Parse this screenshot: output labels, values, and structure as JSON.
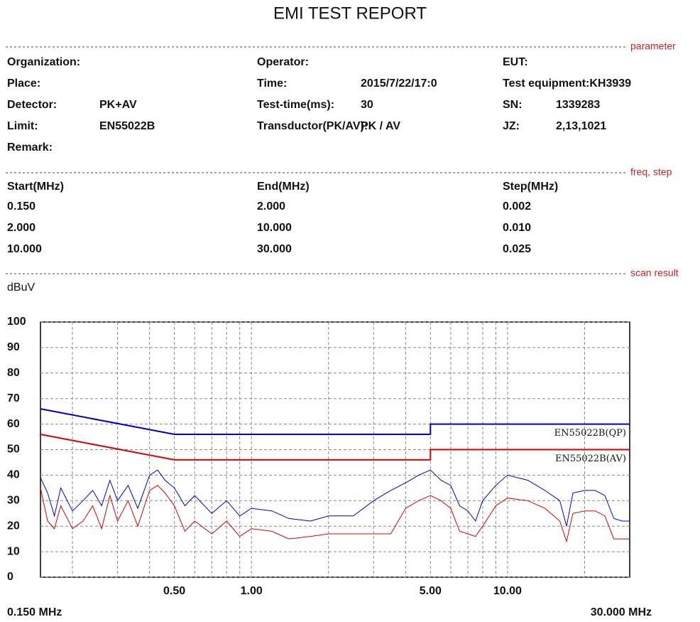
{
  "header": {
    "title": "EMI TEST REPORT"
  },
  "sections": {
    "parameter": "parameter",
    "freq_step": "freq, step",
    "scan_result": "scan result"
  },
  "parameters": [
    [
      {
        "label": "Organization:"
      },
      {
        "label": "Operator:"
      },
      {
        "label": "EUT:"
      }
    ],
    [
      {
        "label": "Place:"
      },
      {
        "label": "Time:",
        "value": "2015/7/22/17:0"
      },
      {
        "label": "Test equipment:KH3939"
      }
    ],
    [
      {
        "label": "Detector:",
        "value": "PK+AV"
      },
      {
        "label": "Test-time(ms):",
        "value": "30"
      },
      {
        "label": "SN:",
        "value": "1339283"
      }
    ],
    [
      {
        "label": "Limit:",
        "value": "EN55022B"
      },
      {
        "label": "Transductor(PK/AV):",
        "value": "PK  /  AV"
      },
      {
        "label": "JZ:",
        "value": "2,13,1021"
      }
    ],
    [
      {
        "label": "Remark:"
      }
    ]
  ],
  "freq_table": {
    "header": [
      "Start(MHz)",
      "End(MHz)",
      "Step(MHz)"
    ],
    "rows": [
      [
        "0.150",
        "2.000",
        "0.002"
      ],
      [
        "2.000",
        "10.000",
        "0.010"
      ],
      [
        "10.000",
        "30.000",
        "0.025"
      ]
    ]
  },
  "chart_data": {
    "type": "line",
    "y_label": "dBuV",
    "xscale": "log",
    "grid": true,
    "xlim": [
      0.15,
      30
    ],
    "ylim": [
      0,
      100
    ],
    "yticks": [
      0,
      10,
      20,
      30,
      40,
      50,
      60,
      70,
      80,
      90,
      100
    ],
    "xticks": [
      {
        "value": 0.5,
        "label": "0.50"
      },
      {
        "value": 1,
        "label": "1.00"
      },
      {
        "value": 5,
        "label": "5.00"
      },
      {
        "value": 10,
        "label": "10.00"
      }
    ],
    "xgrid": [
      0.2,
      0.3,
      0.4,
      0.5,
      0.6,
      0.7,
      0.8,
      0.9,
      1,
      2,
      3,
      4,
      5,
      6,
      7,
      8,
      9,
      10,
      20
    ],
    "x_start_label": "0.150 MHz",
    "x_end_label": "30.000 MHz",
    "series": [
      {
        "name": "EN55022B(QP)",
        "color": "#0000cc",
        "width": 2,
        "x": [
          0.15,
          0.5,
          5,
          5,
          30
        ],
        "values": [
          66,
          56,
          56,
          60,
          60
        ]
      },
      {
        "name": "EN55022B(AV)",
        "color": "#dd0000",
        "width": 2,
        "x": [
          0.15,
          0.5,
          5,
          5,
          30
        ],
        "values": [
          56,
          46,
          46,
          50,
          50
        ]
      },
      {
        "color": "#0000cc",
        "width": 1,
        "x": [
          0.15,
          0.16,
          0.17,
          0.18,
          0.2,
          0.22,
          0.24,
          0.26,
          0.28,
          0.3,
          0.33,
          0.36,
          0.4,
          0.43,
          0.46,
          0.5,
          0.55,
          0.6,
          0.7,
          0.8,
          0.9,
          1.0,
          1.2,
          1.4,
          1.7,
          2.0,
          2.5,
          3.0,
          3.5,
          4.0,
          4.5,
          5.0,
          5.5,
          6.0,
          6.5,
          7.0,
          7.5,
          8.0,
          9.0,
          10,
          12,
          14,
          16,
          17,
          18,
          20,
          22,
          24,
          26,
          28,
          30
        ],
        "values": [
          39,
          33,
          24,
          35,
          26,
          30,
          34,
          28,
          38,
          30,
          36,
          27,
          40,
          42,
          38,
          35,
          28,
          32,
          25,
          30,
          24,
          27,
          26,
          23,
          22,
          24,
          24,
          30,
          34,
          37,
          40,
          42,
          38,
          36,
          28,
          26,
          22,
          30,
          36,
          40,
          38,
          34,
          30,
          20,
          33,
          34,
          34,
          32,
          23,
          22,
          22
        ]
      },
      {
        "color": "#dd0000",
        "width": 1,
        "x": [
          0.15,
          0.16,
          0.17,
          0.18,
          0.2,
          0.22,
          0.24,
          0.26,
          0.28,
          0.3,
          0.33,
          0.36,
          0.4,
          0.43,
          0.46,
          0.5,
          0.55,
          0.6,
          0.7,
          0.8,
          0.9,
          1.0,
          1.2,
          1.4,
          1.7,
          2.0,
          2.5,
          3.0,
          3.5,
          4.0,
          4.5,
          5.0,
          5.5,
          6.0,
          6.5,
          7.0,
          7.5,
          8.0,
          9.0,
          10,
          12,
          14,
          16,
          17,
          18,
          20,
          22,
          24,
          26,
          28,
          30
        ],
        "values": [
          35,
          22,
          19,
          28,
          19,
          22,
          28,
          19,
          32,
          22,
          30,
          20,
          34,
          36,
          33,
          28,
          18,
          22,
          17,
          22,
          16,
          19,
          18,
          15,
          16,
          17,
          17,
          17,
          17,
          27,
          30,
          32,
          30,
          27,
          18,
          17,
          16,
          20,
          28,
          31,
          30,
          27,
          22,
          14,
          25,
          26,
          26,
          24,
          15,
          15,
          15
        ]
      }
    ]
  }
}
